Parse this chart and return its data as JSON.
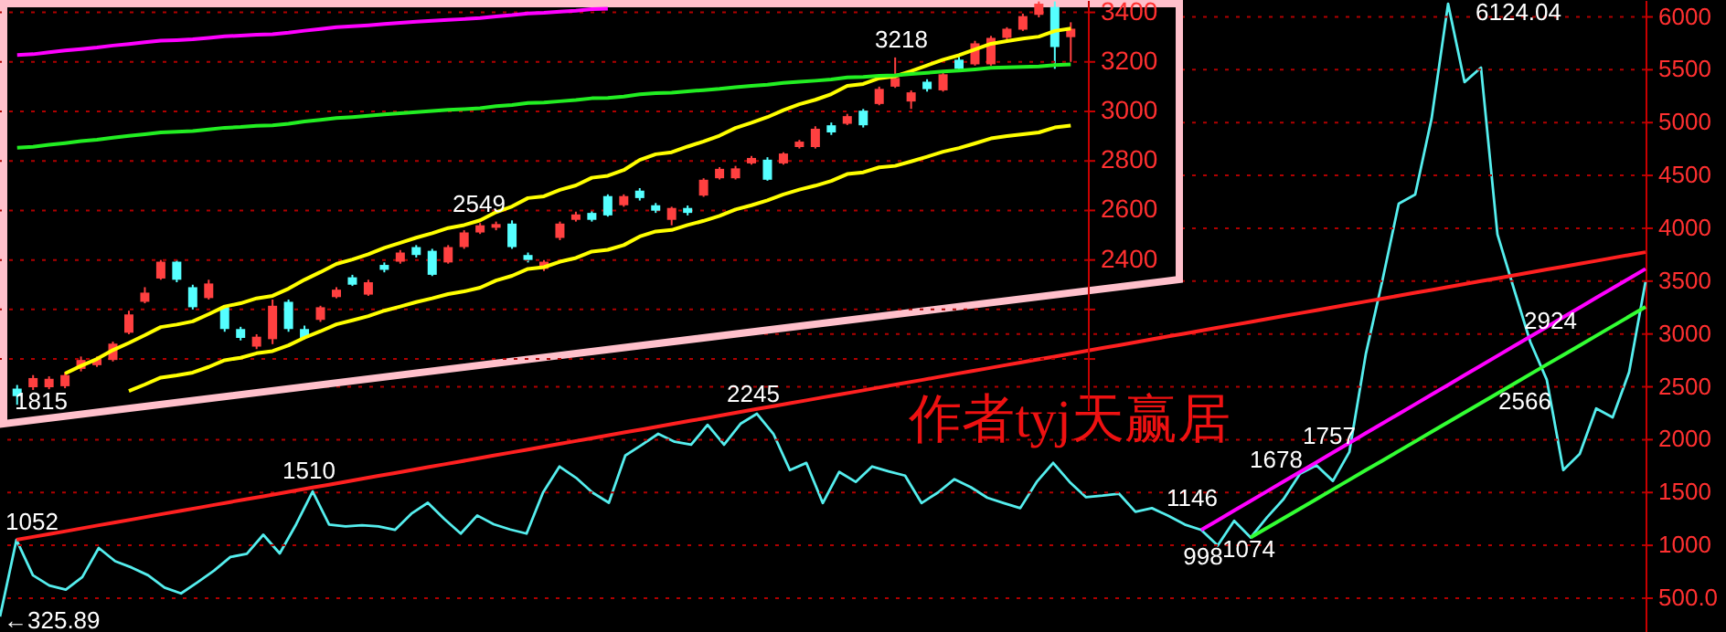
{
  "chart_data": [
    {
      "type": "line",
      "categories": [
        null,
        null,
        null,
        null,
        null,
        null,
        null,
        null,
        null,
        null,
        null,
        null,
        null,
        null,
        null,
        null,
        null,
        null,
        null,
        null,
        null,
        null,
        null,
        null,
        null,
        null,
        null,
        null,
        null,
        null,
        null,
        null,
        null,
        null,
        null,
        null,
        null,
        null,
        null,
        null,
        null,
        null,
        null,
        null,
        null,
        null,
        null,
        null,
        null,
        null,
        null,
        null,
        null,
        null,
        null,
        null,
        null,
        null,
        null,
        null,
        null,
        null,
        null,
        null,
        null,
        null,
        null,
        null,
        null,
        null,
        null,
        null,
        null,
        null,
        null,
        null,
        null,
        null,
        null,
        null,
        null,
        null,
        null,
        null,
        null,
        null,
        null,
        null,
        null,
        null,
        null,
        null,
        null,
        null,
        null,
        null,
        null,
        null,
        null,
        null,
        null
      ],
      "series": [
        {
          "color": "#55eeee",
          "values": [
            325.89,
            1052,
            717,
            620,
            580,
            700,
            975,
            850,
            790,
            717,
            600,
            545,
            650,
            760,
            890,
            920,
            1100,
            923,
            1200,
            1510,
            1197,
            1180,
            1190,
            1180,
            1146,
            1300,
            1403,
            1250,
            1111,
            1283,
            1200,
            1150,
            1111,
            1500,
            1746,
            1640,
            1500,
            1403,
            1850,
            1950,
            2055,
            1980,
            1952,
            2140,
            1952,
            2150,
            2245,
            2055,
            1712,
            1780,
            1400,
            1695,
            1600,
            1746,
            1700,
            1660,
            1400,
            1500,
            1626,
            1550,
            1450,
            1400,
            1352,
            1600,
            1780,
            1600,
            1455,
            1470,
            1489,
            1317,
            1352,
            1280,
            1197,
            1146,
            998,
            1232,
            1074,
            1266,
            1437,
            1678,
            1757,
            1609,
            1883,
            2810,
            3500,
            4233,
            4319,
            5040,
            6124.04,
            5383,
            5520,
            3942,
            3427,
            2924,
            2566,
            1712,
            1866,
            2295,
            2210,
            2638,
            3496
          ]
        },
        {
          "type": "line",
          "color": "#ff2020",
          "values": [
            null,
            1052,
            1080,
            1107,
            1134,
            1162,
            1190,
            1217,
            1244,
            1272,
            1300,
            1327,
            1354,
            1382,
            1410,
            1437,
            1464,
            1492,
            1520,
            1547,
            1574,
            1602,
            1630,
            1657,
            1684,
            1712,
            1740,
            1767,
            1794,
            1822,
            1850,
            1877,
            1904,
            1932,
            1960,
            1987,
            2014,
            2042,
            2070,
            2097,
            2124,
            2152,
            2180,
            2207,
            2234,
            2262,
            2290,
            2317,
            2344,
            2372,
            2400,
            2427,
            2454,
            2482,
            2510,
            2537,
            2564,
            2592,
            2620,
            2647,
            2674,
            2702,
            2730,
            2757,
            2784,
            2812,
            2840,
            2867,
            2894,
            2922,
            2950,
            2977,
            3004,
            3032,
            3060,
            3087,
            3114,
            3142,
            3170,
            3197,
            3224,
            3252,
            3280,
            3307,
            3334,
            3362,
            3390,
            3417,
            3444,
            3472,
            3500,
            3527,
            3554,
            3582,
            3610,
            3637,
            3664,
            3692,
            3720,
            3747,
            3774
          ]
        },
        {
          "type": "line",
          "color": "#ff00ff",
          "values": [
            null,
            null,
            null,
            null,
            null,
            null,
            null,
            null,
            null,
            null,
            null,
            null,
            null,
            null,
            null,
            null,
            null,
            null,
            null,
            null,
            null,
            null,
            null,
            null,
            null,
            null,
            null,
            null,
            null,
            null,
            null,
            null,
            null,
            null,
            null,
            null,
            null,
            null,
            null,
            null,
            null,
            null,
            null,
            null,
            null,
            null,
            null,
            null,
            null,
            null,
            null,
            null,
            null,
            null,
            null,
            null,
            null,
            null,
            null,
            null,
            null,
            null,
            null,
            null,
            null,
            null,
            null,
            null,
            null,
            null,
            null,
            null,
            null,
            1146,
            1237,
            1329,
            1420,
            1512,
            1603,
            1695,
            1786,
            1878,
            1969,
            2061,
            2152,
            2244,
            2335,
            2427,
            2518,
            2610,
            2701,
            2793,
            2884,
            2976,
            3067,
            3159,
            3250,
            3342,
            3433,
            3525,
            3616
          ]
        },
        {
          "type": "line",
          "color": "#33ff33",
          "values": [
            null,
            null,
            null,
            null,
            null,
            null,
            null,
            null,
            null,
            null,
            null,
            null,
            null,
            null,
            null,
            null,
            null,
            null,
            null,
            null,
            null,
            null,
            null,
            null,
            null,
            null,
            null,
            null,
            null,
            null,
            null,
            null,
            null,
            null,
            null,
            null,
            null,
            null,
            null,
            null,
            null,
            null,
            null,
            null,
            null,
            null,
            null,
            null,
            null,
            null,
            null,
            null,
            null,
            null,
            null,
            null,
            null,
            null,
            null,
            null,
            null,
            null,
            null,
            null,
            null,
            null,
            null,
            null,
            null,
            null,
            null,
            null,
            null,
            null,
            null,
            null,
            1074,
            1165,
            1256,
            1347,
            1438,
            1529,
            1620,
            1711,
            1801,
            1892,
            1983,
            2074,
            2165,
            2256,
            2347,
            2438,
            2529,
            2620,
            2711,
            2801,
            2892,
            2983,
            3074,
            3165,
            3256
          ]
        }
      ],
      "ylim": [
        180,
        6160
      ],
      "yticks": [
        {
          "value": 500,
          "label": "500.0"
        },
        1000,
        1500,
        2000,
        2500,
        3000,
        3500,
        4000,
        4500,
        5000,
        5500,
        6000
      ],
      "grid": "y",
      "tick_labels": "y",
      "annotations": [
        "←325.89",
        "1052",
        "1510",
        "2245",
        "1146",
        "998",
        "1074",
        "1678",
        "1757",
        "6124.04",
        "2924",
        "2566",
        "作者tyj天赢居"
      ]
    },
    {
      "type": "candlestick",
      "categories": [
        null,
        null,
        null,
        null,
        null,
        null,
        null,
        null,
        null,
        null,
        null,
        null,
        null,
        null,
        null,
        null,
        null,
        null,
        null,
        null,
        null,
        null,
        null,
        null,
        null,
        null,
        null,
        null,
        null,
        null,
        null,
        null,
        null,
        null,
        null,
        null,
        null,
        null,
        null,
        null,
        null,
        null,
        null,
        null,
        null,
        null,
        null,
        null,
        null,
        null,
        null,
        null,
        null,
        null,
        null,
        null,
        null,
        null,
        null,
        null,
        null,
        null,
        null,
        null,
        null,
        null,
        null
      ],
      "ohlc": [
        [
          1880,
          1895,
          1815,
          1850
        ],
        [
          1886,
          1935,
          1875,
          1923
        ],
        [
          1886,
          1930,
          1878,
          1920
        ],
        [
          1890,
          1945,
          1882,
          1935
        ],
        [
          1960,
          2010,
          1950,
          1996
        ],
        [
          1975,
          2010,
          1968,
          2000
        ],
        [
          1996,
          2070,
          1990,
          2062
        ],
        [
          2106,
          2195,
          2100,
          2180
        ],
        [
          2231,
          2290,
          2225,
          2268
        ],
        [
          2325,
          2400,
          2320,
          2393
        ],
        [
          2393,
          2400,
          2310,
          2320
        ],
        [
          2290,
          2300,
          2200,
          2209
        ],
        [
          2246,
          2320,
          2240,
          2305
        ],
        [
          2209,
          2215,
          2110,
          2121
        ],
        [
          2121,
          2130,
          2075,
          2085
        ],
        [
          2050,
          2100,
          2040,
          2090
        ],
        [
          2080,
          2240,
          2060,
          2215
        ],
        [
          2231,
          2240,
          2110,
          2121
        ],
        [
          2121,
          2135,
          2080,
          2085
        ],
        [
          2158,
          2215,
          2150,
          2209
        ],
        [
          2250,
          2290,
          2245,
          2280
        ],
        [
          2330,
          2340,
          2295,
          2300
        ],
        [
          2260,
          2320,
          2255,
          2310
        ],
        [
          2380,
          2390,
          2350,
          2360
        ],
        [
          2393,
          2440,
          2385,
          2430
        ],
        [
          2452,
          2460,
          2410,
          2420
        ],
        [
          2437,
          2445,
          2335,
          2340
        ],
        [
          2390,
          2460,
          2385,
          2452
        ],
        [
          2452,
          2520,
          2445,
          2511
        ],
        [
          2511,
          2549,
          2505,
          2540
        ],
        [
          2530,
          2555,
          2520,
          2545
        ],
        [
          2547,
          2560,
          2445,
          2452
        ],
        [
          2420,
          2430,
          2390,
          2400
        ],
        [
          2364,
          2400,
          2355,
          2393
        ],
        [
          2489,
          2555,
          2480,
          2547
        ],
        [
          2562,
          2595,
          2555,
          2584
        ],
        [
          2590,
          2600,
          2555,
          2562
        ],
        [
          2658,
          2665,
          2575,
          2580
        ],
        [
          2621,
          2665,
          2615,
          2658
        ],
        [
          2680,
          2690,
          2640,
          2650
        ],
        [
          2621,
          2630,
          2590,
          2599
        ],
        [
          2562,
          2615,
          2540,
          2610
        ],
        [
          2610,
          2620,
          2580,
          2590
        ],
        [
          2660,
          2730,
          2655,
          2724
        ],
        [
          2730,
          2775,
          2725,
          2768
        ],
        [
          2730,
          2780,
          2725,
          2770
        ],
        [
          2790,
          2820,
          2785,
          2812
        ],
        [
          2805,
          2815,
          2720,
          2724
        ],
        [
          2790,
          2835,
          2785,
          2830
        ],
        [
          2856,
          2885,
          2850,
          2878
        ],
        [
          2856,
          2940,
          2850,
          2930
        ],
        [
          2944,
          2955,
          2905,
          2915
        ],
        [
          2950,
          2990,
          2945,
          2981
        ],
        [
          3003,
          3010,
          2935,
          2944
        ],
        [
          3030,
          3100,
          3025,
          3091
        ],
        [
          3100,
          3218,
          3095,
          3135
        ],
        [
          3040,
          3085,
          3010,
          3077
        ],
        [
          3120,
          3130,
          3080,
          3090
        ],
        [
          3085,
          3160,
          3080,
          3150
        ],
        [
          3209,
          3220,
          3165,
          3172
        ],
        [
          3190,
          3285,
          3185,
          3275
        ],
        [
          3190,
          3305,
          3185,
          3297
        ],
        [
          3297,
          3340,
          3290,
          3334
        ],
        [
          3330,
          3395,
          3325,
          3385
        ],
        [
          3390,
          3444,
          3380,
          3435
        ],
        [
          3422,
          3444,
          3172,
          3260
        ],
        [
          3300,
          3360,
          3200,
          3334
        ]
      ],
      "colors": [
        "#55ffff",
        "#ff4040",
        "#ff4040",
        "#ff4040",
        "#ff4040",
        "#ff4040",
        "#ff4040",
        "#ff4040",
        "#ff4040",
        "#ff4040",
        "#55ffff",
        "#55ffff",
        "#ff4040",
        "#55ffff",
        "#55ffff",
        "#ff4040",
        "#ff4040",
        "#55ffff",
        "#55ffff",
        "#ff4040",
        "#ff4040",
        "#55ffff",
        "#ff4040",
        "#55ffff",
        "#ff4040",
        "#55ffff",
        "#55ffff",
        "#ff4040",
        "#ff4040",
        "#ff4040",
        "#ff4040",
        "#55ffff",
        "#55ffff",
        "#ff4040",
        "#ff4040",
        "#ff4040",
        "#55ffff",
        "#55ffff",
        "#ff4040",
        "#55ffff",
        "#55ffff",
        "#ff4040",
        "#55ffff",
        "#ff4040",
        "#ff4040",
        "#ff4040",
        "#ff4040",
        "#55ffff",
        "#ff4040",
        "#ff4040",
        "#ff4040",
        "#55ffff",
        "#ff4040",
        "#55ffff",
        "#ff4040",
        "#ff4040",
        "#ff4040",
        "#55ffff",
        "#ff4040",
        "#55ffff",
        "#ff4040",
        "#ff4040",
        "#ff4040",
        "#ff4040",
        "#ff4040",
        "#55ffff",
        "#ff4040"
      ],
      "series": [
        {
          "type": "line",
          "color": "#ffff00",
          "values": [
            null,
            null,
            null,
            1941,
            1972,
            2000,
            2036,
            2065,
            2096,
            2129,
            2139,
            2152,
            2181,
            2212,
            2225,
            2245,
            2255,
            2284,
            2320,
            2351,
            2384,
            2402,
            2423,
            2449,
            2469,
            2490,
            2508,
            2529,
            2541,
            2560,
            2593,
            2616,
            2650,
            2657,
            2683,
            2701,
            2732,
            2740,
            2763,
            2804,
            2827,
            2835,
            2858,
            2879,
            2902,
            2933,
            2954,
            2977,
            3005,
            3029,
            3047,
            3070,
            3103,
            3111,
            3134,
            3142,
            3163,
            3186,
            3209,
            3227,
            3250,
            3273,
            3284,
            3294,
            3302,
            3325,
            3335
          ]
        },
        {
          "type": "line",
          "color": "#ffff00",
          "values": [
            null,
            null,
            null,
            null,
            null,
            null,
            null,
            1871,
            1897,
            1925,
            1934,
            1945,
            1968,
            1995,
            2005,
            2023,
            2032,
            2055,
            2086,
            2112,
            2140,
            2156,
            2173,
            2195,
            2212,
            2230,
            2245,
            2262,
            2273,
            2288,
            2317,
            2336,
            2364,
            2371,
            2393,
            2408,
            2434,
            2441,
            2460,
            2495,
            2515,
            2521,
            2541,
            2558,
            2578,
            2604,
            2621,
            2641,
            2665,
            2684,
            2700,
            2719,
            2747,
            2754,
            2774,
            2780,
            2798,
            2817,
            2837,
            2852,
            2871,
            2891,
            2900,
            2908,
            2915,
            2935,
            2943
          ]
        },
        {
          "type": "line",
          "color": "#22ee22",
          "values": [
            2853,
            2857,
            2865,
            2872,
            2880,
            2886,
            2894,
            2901,
            2908,
            2915,
            2918,
            2921,
            2927,
            2934,
            2937,
            2942,
            2944,
            2950,
            2959,
            2966,
            2973,
            2977,
            2982,
            2988,
            2993,
            2997,
            3002,
            3006,
            3009,
            3013,
            3021,
            3026,
            3034,
            3036,
            3041,
            3046,
            3053,
            3054,
            3060,
            3069,
            3074,
            3076,
            3081,
            3086,
            3091,
            3098,
            3103,
            3108,
            3115,
            3120,
            3124,
            3129,
            3137,
            3139,
            3144,
            3146,
            3151,
            3156,
            3161,
            3165,
            3170,
            3176,
            3178,
            3180,
            3182,
            3187,
            3190
          ]
        },
        {
          "type": "line",
          "color": "#ff00ff",
          "values": [
            3228,
            3231,
            3239,
            3246,
            3252,
            3258,
            3266,
            3272,
            3279,
            3286,
            3288,
            3291,
            3297,
            3303,
            3306,
            3310,
            3312,
            3318,
            3326,
            3333,
            3340,
            3344,
            3348,
            3353,
            3358,
            3362,
            3366,
            3370,
            3373,
            3377,
            3384,
            3389,
            3396,
            3398,
            3403,
            3407,
            3413,
            3415,
            null,
            null,
            null,
            null,
            null,
            null,
            null,
            null,
            null,
            null,
            null,
            null,
            null,
            null,
            null,
            null,
            null,
            null,
            null,
            null,
            null,
            null,
            null,
            null,
            null,
            null,
            null,
            null,
            null
          ]
        }
      ],
      "ylim": [
        1790,
        3450
      ],
      "yticks": [
        {
          "value": 2000,
          "label": null
        },
        {
          "value": 2200,
          "label": null
        },
        2400,
        2600,
        2800,
        3000,
        3200,
        3400
      ],
      "grid": "y",
      "tick_labels": "y",
      "annotations": [
        "1815",
        "2549",
        "3218"
      ]
    }
  ]
}
